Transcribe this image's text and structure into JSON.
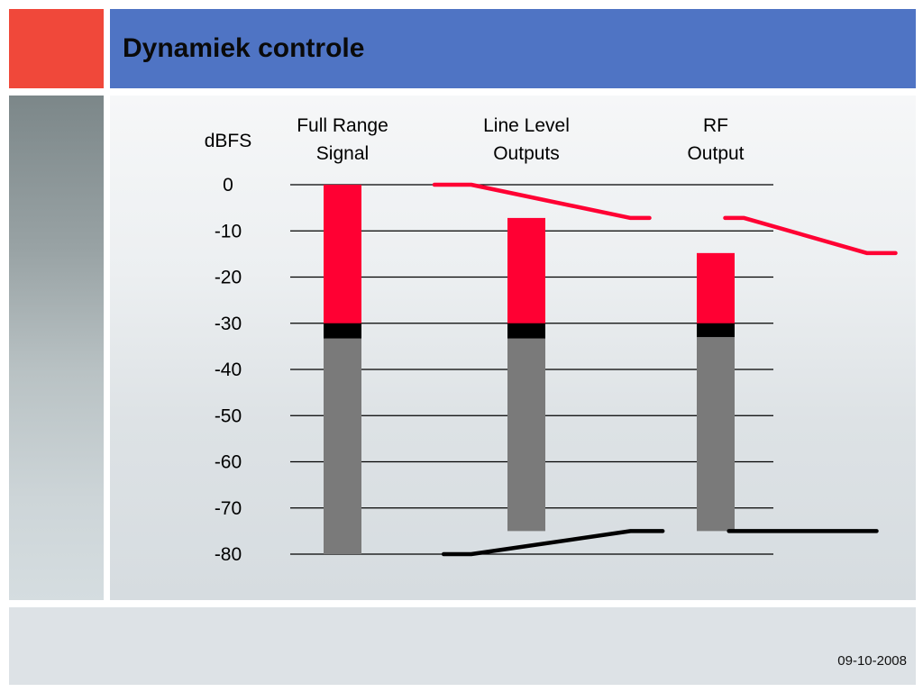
{
  "slide": {
    "title": "Dynamiek controle",
    "date": "09-10-2008"
  },
  "colors": {
    "accent": "#f0483a",
    "title_bar": "#4f74c4",
    "headroom": "#ff0033",
    "noise_margin": "#000000",
    "noise_floor": "#7a7a7a",
    "gridline": "#000000"
  },
  "chart_data": {
    "type": "bar",
    "ylabel": "dBFS",
    "ylim": [
      -80,
      0
    ],
    "yticks": [
      "0",
      "-10",
      "-20",
      "-30",
      "-40",
      "-50",
      "-60",
      "-70",
      "-80"
    ],
    "ytick_values": [
      0,
      -10,
      -20,
      -30,
      -40,
      -50,
      -60,
      -70,
      -80
    ],
    "grid": true,
    "categories": [
      [
        "Full Range",
        "Signal"
      ],
      [
        "Line Level",
        "Outputs"
      ],
      [
        "RF",
        "Output"
      ]
    ],
    "bars": [
      {
        "peak": 0,
        "red_bottom": -30,
        "black_bottom": -33.3,
        "floor": -80
      },
      {
        "peak": -7.2,
        "red_bottom": -30,
        "black_bottom": -33.3,
        "floor": -75
      },
      {
        "peak": -14.8,
        "red_bottom": -30,
        "black_bottom": -33.0,
        "floor": -75
      }
    ],
    "series": [
      {
        "color": "#ff0033",
        "segments": [
          [
            [
              0.5,
              0
            ],
            [
              0.7,
              0
            ],
            [
              1.55,
              -7.2
            ],
            [
              1.65,
              -7.2
            ]
          ],
          [
            [
              2.05,
              -7.2
            ],
            [
              2.15,
              -7.2
            ],
            [
              2.8,
              -14.8
            ],
            [
              2.95,
              -14.8
            ]
          ]
        ]
      },
      {
        "color": "#000000",
        "segments": [
          [
            [
              0.55,
              -80
            ],
            [
              0.7,
              -80
            ],
            [
              1.55,
              -75
            ],
            [
              1.72,
              -75
            ]
          ],
          [
            [
              2.07,
              -75
            ],
            [
              2.85,
              -75
            ]
          ]
        ]
      }
    ]
  }
}
